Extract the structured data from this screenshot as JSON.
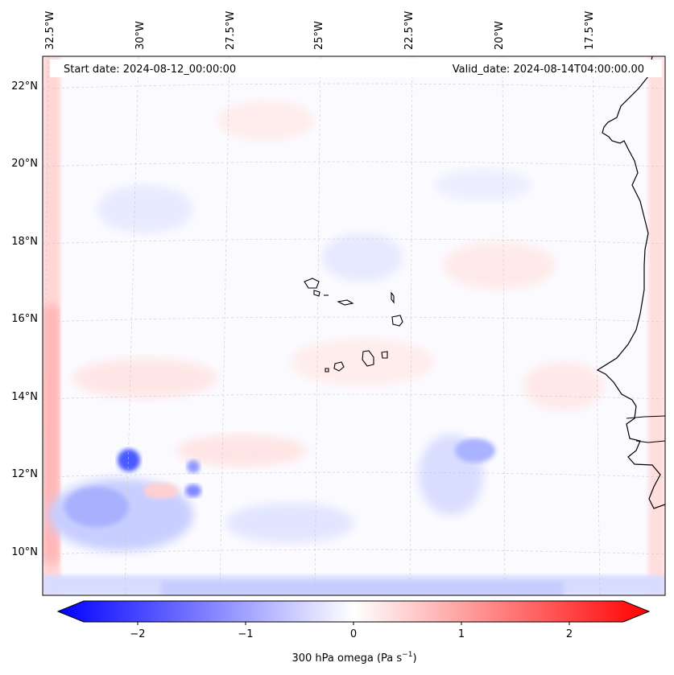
{
  "header": {
    "start_date": "Start date: 2024-08-12_00:00:00",
    "valid_date": "Valid_date: 2024-08-14T04:00:00.00"
  },
  "axes": {
    "longitude_labels": [
      "32.5°W",
      "30°W",
      "27.5°W",
      "25°W",
      "22.5°W",
      "20°W",
      "17.5°W"
    ],
    "latitude_labels": [
      "22°N",
      "20°N",
      "18°N",
      "16°N",
      "14°N",
      "12°N",
      "10°N"
    ]
  },
  "colorbar": {
    "ticks": [
      "−2",
      "−1",
      "0",
      "1",
      "2"
    ],
    "label": "300 hPa omega (Pa s",
    "label_sup": "−1",
    "label_end": ")",
    "low_color": "#0000ff",
    "mid_color": "#ffffff",
    "high_color": "#ff0000"
  }
}
